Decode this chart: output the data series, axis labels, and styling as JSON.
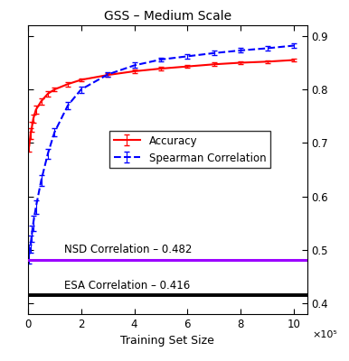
{
  "title": "GSS – Medium Scale",
  "xlabel": "Training Set Size",
  "xlim": [
    0,
    1050000
  ],
  "ylim": [
    0.38,
    0.92
  ],
  "xticks": [
    0,
    200000,
    400000,
    600000,
    800000,
    1000000
  ],
  "xtick_labels": [
    "0",
    "2",
    "4",
    "6",
    "8",
    "10"
  ],
  "xscale_label": "×10⁵",
  "yticks": [
    0.4,
    0.5,
    0.6,
    0.7,
    0.8,
    0.9
  ],
  "nsd_value": 0.482,
  "nsd_label": "NSD Correlation – 0.482",
  "nsd_color": "#9B00FF",
  "esa_value": 0.416,
  "esa_label": "ESA Correlation – 0.416",
  "esa_color": "#000000",
  "accuracy_color": "#FF0000",
  "spearman_color": "#0000FF",
  "accuracy_label": "Accuracy",
  "spearman_label": "Spearman Correlation",
  "accuracy_x": [
    5000,
    10000,
    15000,
    20000,
    30000,
    50000,
    75000,
    100000,
    150000,
    200000,
    300000,
    400000,
    500000,
    600000,
    700000,
    800000,
    900000,
    1000000
  ],
  "accuracy_y": [
    0.695,
    0.718,
    0.73,
    0.745,
    0.762,
    0.778,
    0.792,
    0.8,
    0.81,
    0.818,
    0.827,
    0.834,
    0.839,
    0.843,
    0.847,
    0.85,
    0.852,
    0.855
  ],
  "accuracy_yerr": [
    0.012,
    0.01,
    0.009,
    0.008,
    0.007,
    0.006,
    0.005,
    0.004,
    0.004,
    0.003,
    0.003,
    0.003,
    0.003,
    0.003,
    0.003,
    0.003,
    0.003,
    0.003
  ],
  "spearman_x": [
    5000,
    10000,
    15000,
    20000,
    30000,
    50000,
    75000,
    100000,
    150000,
    200000,
    300000,
    400000,
    500000,
    600000,
    700000,
    800000,
    900000,
    1000000
  ],
  "spearman_y": [
    0.492,
    0.51,
    0.53,
    0.55,
    0.58,
    0.63,
    0.68,
    0.72,
    0.77,
    0.8,
    0.828,
    0.845,
    0.856,
    0.862,
    0.868,
    0.873,
    0.877,
    0.882
  ],
  "spearman_yerr": [
    0.018,
    0.016,
    0.015,
    0.014,
    0.012,
    0.01,
    0.009,
    0.008,
    0.007,
    0.006,
    0.005,
    0.005,
    0.004,
    0.004,
    0.004,
    0.004,
    0.004,
    0.004
  ],
  "background_color": "#FFFFFF",
  "figsize": [
    3.86,
    4.0
  ],
  "dpi": 100
}
